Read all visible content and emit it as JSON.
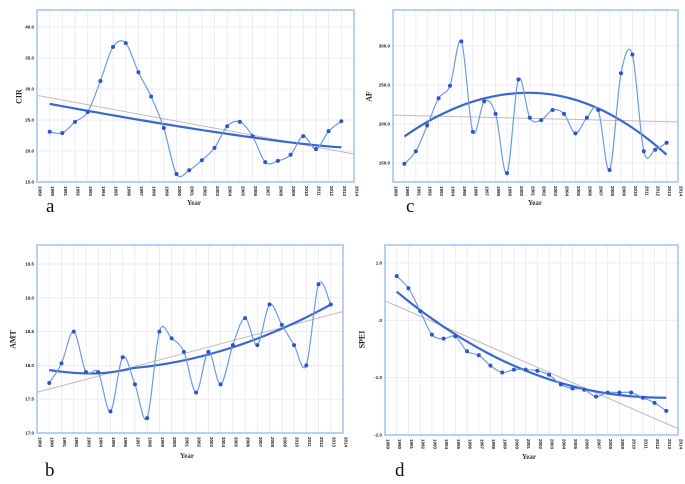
{
  "chart_data": [
    {
      "panel": "a",
      "type": "line",
      "title": "",
      "xlabel": "Year",
      "ylabel": "CIR",
      "ylim": [
        15,
        40
      ],
      "yticks": [
        "15.0",
        "20.0",
        "25.0",
        "30.0",
        "35.0",
        "40.0"
      ],
      "grid": true,
      "series": [
        {
          "name": "observed",
          "values": [
            23.1,
            22.9,
            24.7,
            26.3,
            31.3,
            36.8,
            37.4,
            32.7,
            28.8,
            23.7,
            16.3,
            16.9,
            18.5,
            20.5,
            24.0,
            24.7,
            22.4,
            18.2,
            18.4,
            19.4,
            22.4,
            20.3,
            23.2,
            24.8
          ]
        },
        {
          "name": "quadratic fit",
          "start": 27.6,
          "end": 20.6
        },
        {
          "name": "linear fit",
          "start": 28.6,
          "end": 19.9
        }
      ]
    },
    {
      "panel": "b",
      "type": "line",
      "title": "",
      "xlabel": "Year",
      "ylabel": "AMT",
      "ylim": [
        17.0,
        19.5
      ],
      "yticks": [
        "17.0",
        "17.5",
        "18.0",
        "18.5",
        "19.0",
        "19.5"
      ],
      "grid": true,
      "series": [
        {
          "name": "observed",
          "values": [
            17.74,
            18.03,
            18.5,
            17.9,
            17.9,
            17.32,
            18.12,
            17.72,
            17.22,
            18.5,
            18.4,
            18.2,
            17.6,
            18.2,
            17.72,
            18.3,
            18.7,
            18.3,
            18.9,
            18.6,
            18.3,
            18.0,
            19.2,
            18.9
          ]
        },
        {
          "name": "quadratic fit",
          "start": 17.95,
          "end": 18.9
        },
        {
          "name": "linear fit",
          "start": 17.65,
          "end": 18.75
        }
      ]
    },
    {
      "panel": "c",
      "type": "line",
      "title": "",
      "xlabel": "Year",
      "ylabel": "AF",
      "ylim": [
        130,
        330
      ],
      "yticks": [
        "150.0",
        "200.0",
        "250.0",
        "300.0"
      ],
      "grid": true,
      "series": [
        {
          "name": "observed",
          "values": [
            149,
            165,
            198,
            233,
            249,
            306,
            190,
            229,
            213,
            137,
            257,
            208,
            205,
            218,
            213,
            188,
            208,
            218,
            141,
            265,
            289,
            165,
            167,
            176
          ]
        },
        {
          "name": "quadratic fit",
          "start": 180,
          "end": 180
        },
        {
          "name": "linear fit",
          "start": 211,
          "end": 203
        }
      ]
    },
    {
      "panel": "d",
      "type": "line",
      "title": "",
      "xlabel": "Year",
      "ylabel": "SPEI",
      "ylim": [
        -2.0,
        1.3
      ],
      "yticks": [
        "-2.0",
        "-1.0",
        ".0",
        "1.0"
      ],
      "grid": true,
      "series": [
        {
          "name": "observed",
          "values": [
            0.77,
            0.56,
            0.16,
            -0.25,
            -0.32,
            -0.28,
            -0.54,
            -0.61,
            -0.79,
            -0.91,
            -0.86,
            -0.86,
            -0.88,
            -0.95,
            -1.12,
            -1.19,
            -1.21,
            -1.33,
            -1.26,
            -1.26,
            -1.26,
            -1.35,
            -1.44,
            -1.58
          ]
        },
        {
          "name": "quadratic fit",
          "start": 0.5,
          "end": -1.35
        },
        {
          "name": "linear fit",
          "start": 0.25,
          "end": -1.8
        }
      ]
    }
  ],
  "panels": {
    "a": {
      "letter": "a",
      "ylabel": "CIR",
      "xlabel": "Year"
    },
    "b": {
      "letter": "b",
      "ylabel": "AMT",
      "xlabel": "Year"
    },
    "c": {
      "letter": "c",
      "ylabel": "AF",
      "xlabel": "Year"
    },
    "d": {
      "letter": "d",
      "ylabel": "SPEI",
      "xlabel": "Year"
    }
  },
  "colors": {
    "frame": "#a9c4ec",
    "grid": "#e6e9f0",
    "observed_line": "#6f9ae6",
    "point": "#2a56c9",
    "fit_curve": "#3b67d0",
    "linear_fit": "#c4b8c0"
  }
}
